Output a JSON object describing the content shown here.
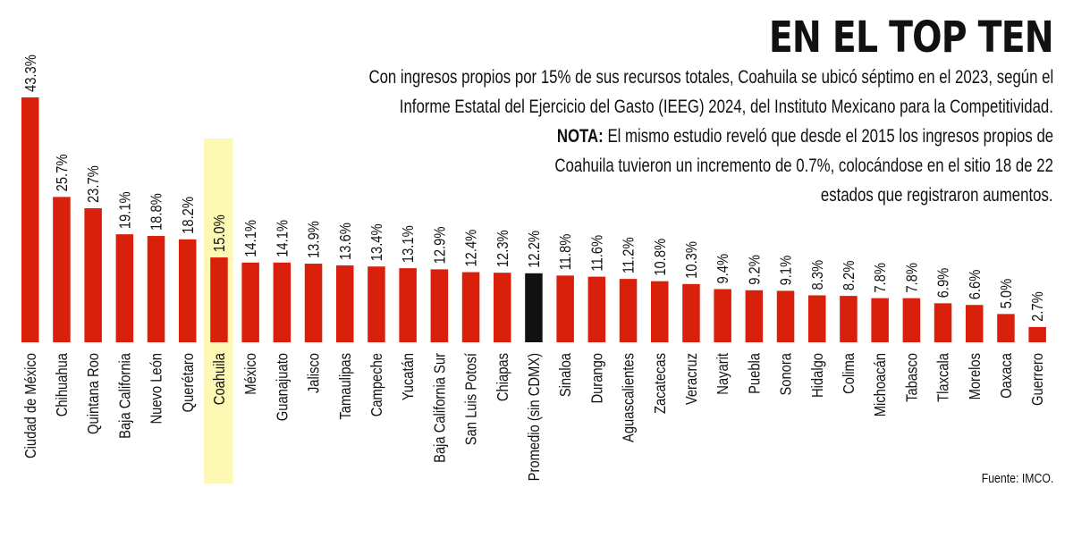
{
  "header": {
    "title": "EN EL TOP TEN",
    "lines": [
      "Con ingresos propios por 15% de sus recursos totales, Coahuila se ubicó séptimo en el 2023, según el",
      "Informe Estatal del Ejercicio del Gasto (IEEG) 2024, del Instituto Mexicano para la Competitividad."
    ],
    "note_label": "NOTA:",
    "note_lines": [
      " El mismo estudio reveló que desde el 2015 los ingresos propios de",
      "Coahuila tuvieron un incremento de 0.7%, colocándose en el sitio 18 de 22",
      "estados que registraron aumentos."
    ]
  },
  "source": "Fuente: IMCO.",
  "colors": {
    "bar": "#d9200a",
    "average_bar": "#111111",
    "highlight": "#fdf9b4"
  },
  "chart_data": {
    "type": "bar",
    "orientation": "vertical",
    "title": "EN EL TOP TEN",
    "unit": "%",
    "categories": [
      "Ciudad de México",
      "Chihuahua",
      "Quintana Roo",
      "Baja California",
      "Nuevo León",
      "Querétaro",
      "Coahuila",
      "México",
      "Guanajuato",
      "Jalisco",
      "Tamaulipas",
      "Campeche",
      "Yucatán",
      "Baja California Sur",
      "San Luis Potosí",
      "Chiapas",
      "Promedio (sin CDMX)",
      "Sinaloa",
      "Durango",
      "Aguascalientes",
      "Zacatecas",
      "Veracruz",
      "Nayarit",
      "Puebla",
      "Sonora",
      "Hidalgo",
      "Colima",
      "Michoacán",
      "Tabasco",
      "Tlaxcala",
      "Morelos",
      "Oaxaca",
      "Guerrero"
    ],
    "values": [
      43.3,
      25.7,
      23.7,
      19.1,
      18.8,
      18.2,
      15.0,
      14.1,
      14.1,
      13.9,
      13.6,
      13.4,
      13.1,
      12.9,
      12.4,
      12.3,
      12.2,
      11.8,
      11.6,
      11.2,
      10.8,
      10.3,
      9.4,
      9.2,
      9.1,
      8.3,
      8.2,
      7.8,
      7.8,
      6.9,
      6.6,
      5.0,
      2.7
    ],
    "data_labels": [
      "43.3%",
      "25.7%",
      "23.7%",
      "19.1%",
      "18.8%",
      "18.2%",
      "15.0%",
      "14.1%",
      "14.1%",
      "13.9%",
      "13.6%",
      "13.4%",
      "13.1%",
      "12.9%",
      "12.4%",
      "12.3%",
      "12.2%",
      "11.8%",
      "11.6%",
      "11.2%",
      "10.8%",
      "10.3%",
      "9.4%",
      "9.2%",
      "9.1%",
      "8.3%",
      "8.2%",
      "7.8%",
      "7.8%",
      "6.9%",
      "6.6%",
      "5.0%",
      "2.7%"
    ],
    "highlighted_category": "Coahuila",
    "average_category": "Promedio (sin CDMX)",
    "ylim": [
      0,
      43.3
    ],
    "grid": false,
    "axes_visible": false
  }
}
